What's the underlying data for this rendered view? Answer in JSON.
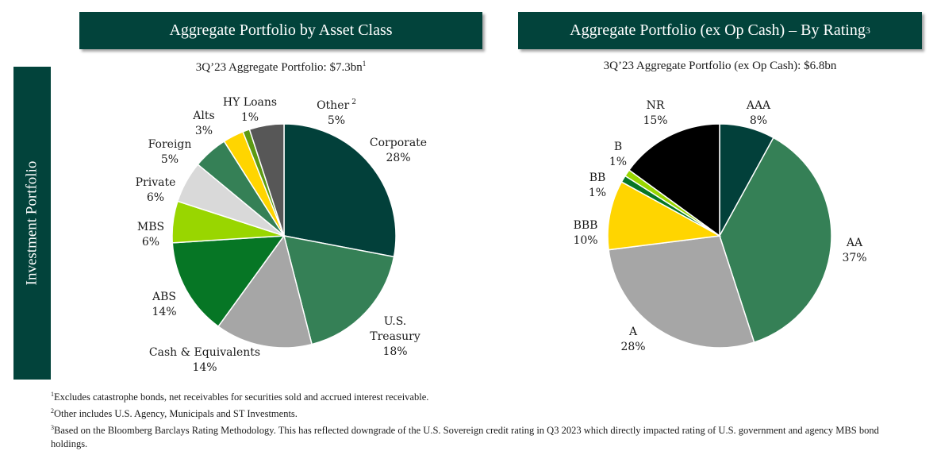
{
  "side_tab": {
    "label": "Investment Portfolio"
  },
  "header_left": {
    "title": "Aggregate Portfolio by Asset Class"
  },
  "header_right": {
    "title": "Aggregate Portfolio (ex Op Cash) – By Rating",
    "footnote_mark": "3"
  },
  "subtitle_left": {
    "text": "3Q’23 Aggregate Portfolio: $7.3bn",
    "footnote_mark": "1"
  },
  "subtitle_right": {
    "text": "3Q’23 Aggregate Portfolio (ex Op Cash): $6.8bn"
  },
  "chart_data": [
    {
      "type": "pie",
      "title": "Aggregate Portfolio by Asset Class",
      "start": "12 o'clock",
      "direction": "clockwise",
      "slices": [
        {
          "label": "Corporate",
          "value": 28,
          "value_label": "28%",
          "color": "#02403a"
        },
        {
          "label": "U.S. Treasury",
          "value": 18,
          "value_label": "18%",
          "color": "#358056"
        },
        {
          "label": "Cash & Equivalents",
          "value": 14,
          "value_label": "14%",
          "color": "#a6a6a6"
        },
        {
          "label": "ABS",
          "value": 14,
          "value_label": "14%",
          "color": "#067625"
        },
        {
          "label": "MBS",
          "value": 6,
          "value_label": "6%",
          "color": "#99d600"
        },
        {
          "label": "Private",
          "value": 6,
          "value_label": "6%",
          "color": "#d9d9d9"
        },
        {
          "label": "Foreign",
          "value": 5,
          "value_label": "5%",
          "color": "#358056"
        },
        {
          "label": "Alts",
          "value": 3,
          "value_label": "3%",
          "color": "#ffd500"
        },
        {
          "label": "HY Loans",
          "value": 1,
          "value_label": "1%",
          "color": "#5c9a13"
        },
        {
          "label": "Other",
          "label_mark": "2",
          "value": 5,
          "value_label": "5%",
          "color": "#575757"
        }
      ]
    },
    {
      "type": "pie",
      "title": "Aggregate Portfolio (ex Op Cash) – By Rating",
      "start": "12 o'clock",
      "direction": "clockwise",
      "slices": [
        {
          "label": "AAA",
          "value": 8,
          "value_label": "8%",
          "color": "#02403a"
        },
        {
          "label": "AA",
          "value": 37,
          "value_label": "37%",
          "color": "#358056"
        },
        {
          "label": "A",
          "value": 28,
          "value_label": "28%",
          "color": "#a6a6a6"
        },
        {
          "label": "BBB",
          "value": 10,
          "value_label": "10%",
          "color": "#ffd500"
        },
        {
          "label": "BB",
          "value": 1,
          "value_label": "1%",
          "color": "#067625"
        },
        {
          "label": "B",
          "value": 1,
          "value_label": "1%",
          "color": "#99d600"
        },
        {
          "label": "NR",
          "value": 15,
          "value_label": "15%",
          "color": "#000000"
        }
      ]
    }
  ],
  "footnotes": [
    {
      "mark": "1",
      "text": "Excludes catastrophe bonds, net receivables for securities sold and accrued interest receivable."
    },
    {
      "mark": "2",
      "text": "Other includes U.S. Agency, Municipals and ST Investments."
    },
    {
      "mark": "3",
      "text": "Based on the Bloomberg Barclays Rating Methodology. This has reflected downgrade of the U.S. Sovereign credit rating in Q3 2023 which directly impacted rating of U.S. government and agency MBS bond holdings."
    }
  ]
}
